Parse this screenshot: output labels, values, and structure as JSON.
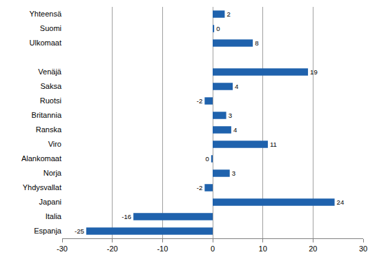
{
  "chart_data": {
    "type": "bar",
    "orientation": "horizontal",
    "categories": [
      "Yhteensä",
      "Suomi",
      "Ulkomaat",
      null,
      "Venäjä",
      "Saksa",
      "Ruotsi",
      "Britannia",
      "Ranska",
      "Viro",
      "Alankomaat",
      "Norja",
      "Yhdysvallat",
      "Japani",
      "Italia",
      "Espanja"
    ],
    "values": [
      2.4,
      0.3,
      8,
      null,
      19,
      4,
      -1.6,
      2.7,
      3.7,
      11,
      -0.3,
      3.4,
      -1.6,
      24.3,
      -15.8,
      -25.2
    ],
    "value_labels": [
      "2",
      "0",
      "8",
      null,
      "19",
      "4",
      "-2",
      "3",
      "4",
      "11",
      "0",
      "3",
      "-2",
      "24",
      "-16",
      "-25"
    ],
    "data_labels": true,
    "color": "#1f62ad",
    "xlim": [
      -30,
      30
    ],
    "xticks": [
      -30,
      -20,
      -10,
      0,
      10,
      20,
      30
    ],
    "grid": true
  }
}
